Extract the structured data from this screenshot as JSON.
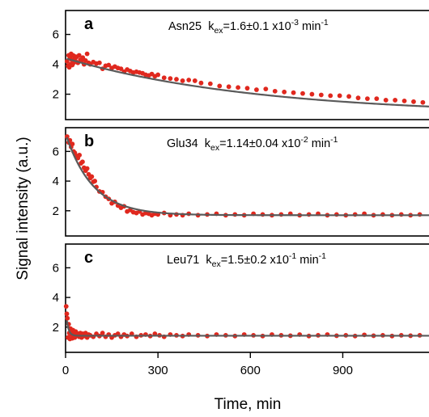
{
  "chart_data": {
    "type": "scatter",
    "xlabel": "Time, min",
    "ylabel": "Signal intensity (a.u.)",
    "xlim": [
      0,
      1180
    ],
    "x_ticks": [
      0,
      300,
      600,
      900
    ],
    "legend": "none",
    "grid": false,
    "colors": {
      "points": "#e0281e",
      "fit": "#5a5a5a"
    },
    "panels": [
      {
        "letter": "a",
        "annotation": {
          "residue": "Asn25",
          "k": "k",
          "k_sub": "ex",
          "value": "=1.6±0.1 x10",
          "exp": "-3",
          "unit": " min",
          "unit_exp": "-1"
        },
        "ylim": [
          0.3,
          7.6
        ],
        "y_ticks": [
          2,
          4,
          6
        ],
        "fit": {
          "model": "single-exponential",
          "a0": 4.4,
          "plateau": 0.6,
          "k_per_min": 0.0016
        },
        "series": [
          {
            "name": "data",
            "x": [
              5,
              8,
              10,
              12,
              14,
              16,
              18,
              20,
              22,
              24,
              26,
              28,
              30,
              33,
              36,
              40,
              44,
              48,
              52,
              56,
              60,
              65,
              70,
              75,
              80,
              90,
              100,
              110,
              120,
              130,
              140,
              150,
              160,
              170,
              180,
              190,
              200,
              210,
              220,
              230,
              240,
              250,
              260,
              270,
              280,
              290,
              300,
              320,
              340,
              360,
              380,
              400,
              420,
              440,
              470,
              500,
              530,
              560,
              590,
              620,
              650,
              680,
              710,
              740,
              770,
              800,
              830,
              860,
              890,
              920,
              950,
              980,
              1010,
              1040,
              1070,
              1100,
              1130,
              1160
            ],
            "y": [
              4.2,
              3.9,
              4.6,
              3.8,
              4.5,
              4.0,
              4.7,
              4.3,
              3.95,
              4.6,
              4.1,
              4.55,
              4.35,
              4.2,
              4.5,
              4.1,
              4.6,
              4.3,
              4.25,
              4.45,
              4.0,
              4.25,
              4.7,
              4.1,
              4.0,
              4.15,
              4.05,
              4.1,
              3.7,
              3.9,
              3.95,
              3.75,
              3.85,
              3.75,
              3.7,
              3.5,
              3.65,
              3.55,
              3.45,
              3.5,
              3.45,
              3.4,
              3.3,
              3.25,
              3.35,
              3.2,
              3.3,
              3.1,
              3.05,
              3.0,
              2.9,
              2.95,
              2.9,
              2.75,
              2.7,
              2.55,
              2.5,
              2.45,
              2.4,
              2.3,
              2.35,
              2.2,
              2.15,
              2.1,
              2.05,
              2.0,
              1.95,
              1.9,
              1.9,
              1.85,
              1.75,
              1.7,
              1.7,
              1.6,
              1.6,
              1.55,
              1.5,
              1.45
            ]
          }
        ]
      },
      {
        "letter": "b",
        "annotation": {
          "residue": "Glu34",
          "k": "k",
          "k_sub": "ex",
          "value": "=1.14±0.04 x10",
          "exp": "-2",
          "unit": " min",
          "unit_exp": "-1"
        },
        "ylim": [
          0.3,
          7.6
        ],
        "y_ticks": [
          2,
          4,
          6
        ],
        "fit": {
          "model": "single-exponential",
          "a0": 7.2,
          "plateau": 1.7,
          "k_per_min": 0.0114
        },
        "series": [
          {
            "name": "data",
            "x": [
              5,
              10,
              14,
              18,
              22,
              26,
              30,
              35,
              40,
              45,
              50,
              55,
              60,
              65,
              70,
              75,
              80,
              85,
              90,
              95,
              100,
              110,
              120,
              130,
              140,
              150,
              160,
              170,
              180,
              190,
              200,
              210,
              220,
              230,
              240,
              250,
              260,
              270,
              280,
              290,
              300,
              320,
              340,
              360,
              380,
              400,
              430,
              460,
              490,
              520,
              550,
              580,
              610,
              640,
              670,
              700,
              730,
              760,
              790,
              820,
              850,
              880,
              910,
              940,
              970,
              1000,
              1030,
              1060,
              1090,
              1120,
              1150
            ],
            "y": [
              7.0,
              6.6,
              6.75,
              6.3,
              6.5,
              6.0,
              5.9,
              5.7,
              5.55,
              5.75,
              5.2,
              5.3,
              4.9,
              4.7,
              4.85,
              4.45,
              4.2,
              4.3,
              3.95,
              4.0,
              3.6,
              3.3,
              3.25,
              2.95,
              2.8,
              2.5,
              2.6,
              2.35,
              2.2,
              2.3,
              1.95,
              2.05,
              1.9,
              1.85,
              1.95,
              1.75,
              1.85,
              1.8,
              1.7,
              1.8,
              1.75,
              1.85,
              1.7,
              1.75,
              1.7,
              1.8,
              1.7,
              1.75,
              1.8,
              1.7,
              1.75,
              1.7,
              1.8,
              1.75,
              1.7,
              1.75,
              1.8,
              1.7,
              1.75,
              1.8,
              1.7,
              1.75,
              1.7,
              1.75,
              1.8,
              1.7,
              1.75,
              1.7,
              1.75,
              1.7,
              1.75
            ]
          }
        ]
      },
      {
        "letter": "c",
        "annotation": {
          "residue": "Leu71",
          "k": "k",
          "k_sub": "ex",
          "value": "=1.5±0.2 x10",
          "exp": "-1",
          "unit": " min",
          "unit_exp": "-1"
        },
        "ylim": [
          0.3,
          7.6
        ],
        "y_ticks": [
          2,
          4,
          6
        ],
        "fit": {
          "model": "single-exponential",
          "a0": 3.3,
          "plateau": 1.42,
          "k_per_min": 0.15
        },
        "series": [
          {
            "name": "data",
            "x": [
              2,
              4,
              6,
              8,
              10,
              12,
              14,
              16,
              18,
              20,
              22,
              24,
              26,
              28,
              30,
              33,
              36,
              40,
              44,
              48,
              52,
              56,
              60,
              65,
              70,
              75,
              80,
              90,
              100,
              110,
              120,
              130,
              140,
              150,
              160,
              170,
              180,
              190,
              200,
              215,
              230,
              245,
              260,
              275,
              290,
              305,
              320,
              340,
              360,
              380,
              400,
              430,
              460,
              490,
              520,
              550,
              580,
              610,
              640,
              670,
              700,
              730,
              760,
              790,
              820,
              850,
              880,
              910,
              940,
              970,
              1000,
              1030,
              1060,
              1090,
              1120,
              1150
            ],
            "y": [
              3.4,
              2.9,
              2.6,
              1.3,
              2.2,
              1.6,
              1.2,
              1.9,
              1.5,
              1.7,
              1.25,
              1.8,
              1.4,
              1.6,
              1.3,
              1.7,
              1.45,
              1.55,
              1.35,
              1.6,
              1.3,
              1.55,
              1.4,
              1.6,
              1.3,
              1.5,
              1.45,
              1.35,
              1.55,
              1.4,
              1.6,
              1.35,
              1.5,
              1.3,
              1.45,
              1.55,
              1.35,
              1.5,
              1.4,
              1.55,
              1.35,
              1.45,
              1.5,
              1.4,
              1.55,
              1.45,
              1.35,
              1.5,
              1.45,
              1.4,
              1.5,
              1.45,
              1.4,
              1.5,
              1.45,
              1.4,
              1.5,
              1.45,
              1.4,
              1.5,
              1.45,
              1.42,
              1.5,
              1.4,
              1.45,
              1.5,
              1.42,
              1.45,
              1.4,
              1.48,
              1.42,
              1.45,
              1.4,
              1.45,
              1.42,
              1.45
            ]
          }
        ]
      }
    ]
  }
}
